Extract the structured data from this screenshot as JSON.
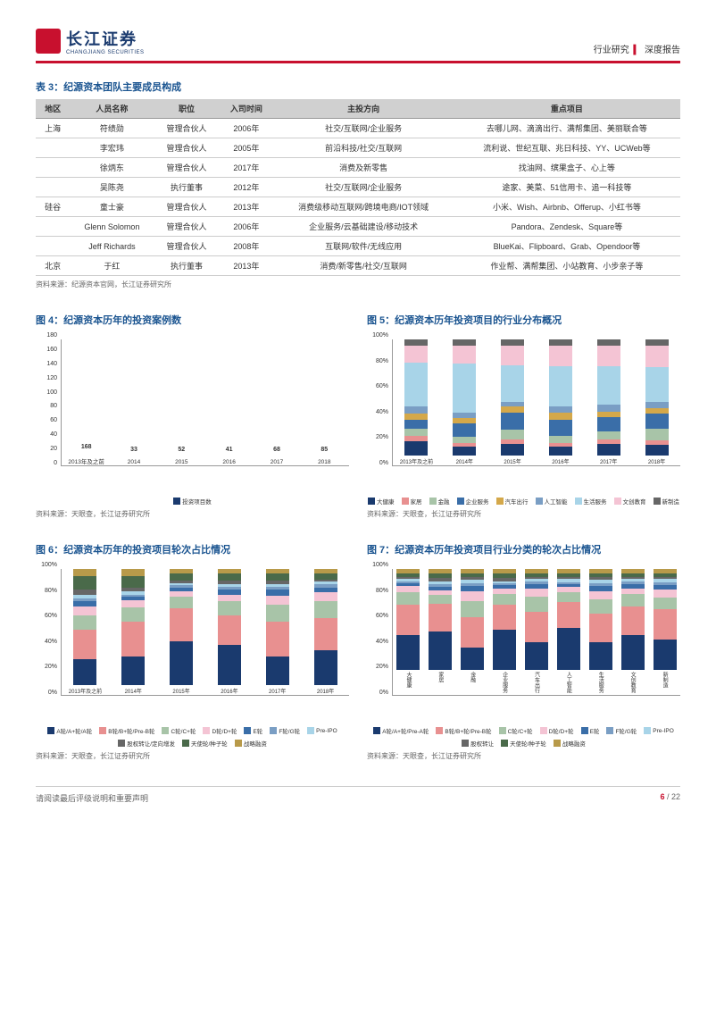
{
  "header": {
    "logo_cn": "长江证券",
    "logo_en": "CHANGJIANG SECURITIES",
    "cat1": "行业研究",
    "cat2": "深度报告"
  },
  "table3": {
    "title": "表 3：纪源资本团队主要成员构成",
    "headers": [
      "地区",
      "人员名称",
      "职位",
      "入司时间",
      "主投方向",
      "重点项目"
    ],
    "rows": [
      [
        "上海",
        "符绩勋",
        "管理合伙人",
        "2006年",
        "社交/互联网/企业服务",
        "去哪儿网、滴滴出行、满帮集团、美丽联合等"
      ],
      [
        "",
        "李宏玮",
        "管理合伙人",
        "2005年",
        "前沿科技/社交/互联网",
        "流利说、世纪互联、兆日科技、YY、UCWeb等"
      ],
      [
        "",
        "徐炳东",
        "管理合伙人",
        "2017年",
        "消费及新零售",
        "找油网、缤果盒子、心上等"
      ],
      [
        "",
        "吴陈尧",
        "执行董事",
        "2012年",
        "社交/互联网/企业服务",
        "途家、美菜、51信用卡、追一科技等"
      ],
      [
        "硅谷",
        "童士豪",
        "管理合伙人",
        "2013年",
        "消费级移动互联网/跨境电商/IOT领域",
        "小米、Wish、Airbnb、Offerup、小红书等"
      ],
      [
        "",
        "Glenn Solomon",
        "管理合伙人",
        "2006年",
        "企业服务/云基础建设/移动技术",
        "Pandora、Zendesk、Square等"
      ],
      [
        "",
        "Jeff Richards",
        "管理合伙人",
        "2008年",
        "互联网/软件/无线应用",
        "BlueKai、Flipboard、Grab、Opendoor等"
      ],
      [
        "北京",
        "于红",
        "执行董事",
        "2013年",
        "消费/新零售/社交/互联网",
        "作业帮、满帮集团、小站教育、小步亲子等"
      ]
    ],
    "source": "资料来源：纪源资本官网，长江证券研究所"
  },
  "chart4": {
    "title": "图 4：纪源资本历年的投资案例数",
    "y_ticks": [
      "180",
      "160",
      "140",
      "120",
      "100",
      "80",
      "60",
      "40",
      "20",
      "0"
    ],
    "x_labels": [
      "2013年及之前",
      "2014",
      "2015",
      "2016",
      "2017",
      "2018"
    ],
    "values": [
      168,
      33,
      52,
      41,
      68,
      85
    ],
    "max": 180,
    "bar_color": "#1a3a6e",
    "legend": "投资项目数",
    "source": "资料来源：天眼查，长江证券研究所"
  },
  "chart5": {
    "title": "图 5：纪源资本历年投资项目的行业分布概况",
    "y_ticks": [
      "100%",
      "80%",
      "60%",
      "40%",
      "20%",
      "0%"
    ],
    "x_labels": [
      "2013年及之前",
      "2014年",
      "2015年",
      "2016年",
      "2017年",
      "2018年"
    ],
    "series": [
      {
        "name": "大健康",
        "color": "#1a3a6e"
      },
      {
        "name": "家居",
        "color": "#e89090"
      },
      {
        "name": "金融",
        "color": "#a8c4a8"
      },
      {
        "name": "企业服务",
        "color": "#3a6ea8"
      },
      {
        "name": "汽车出行",
        "color": "#d4a84a"
      },
      {
        "name": "人工智能",
        "color": "#7a9ec4"
      },
      {
        "name": "生活服务",
        "color": "#a8d4e8"
      },
      {
        "name": "文创教育",
        "color": "#f4c4d4"
      },
      {
        "name": "新制造",
        "color": "#666666"
      }
    ],
    "data": [
      [
        12,
        5,
        6,
        8,
        5,
        6,
        38,
        15,
        5
      ],
      [
        8,
        3,
        5,
        12,
        4,
        5,
        42,
        16,
        5
      ],
      [
        10,
        4,
        8,
        15,
        5,
        4,
        32,
        17,
        5
      ],
      [
        8,
        3,
        6,
        14,
        6,
        5,
        35,
        18,
        5
      ],
      [
        10,
        4,
        7,
        12,
        5,
        6,
        33,
        18,
        5
      ],
      [
        9,
        4,
        10,
        13,
        5,
        5,
        30,
        19,
        5
      ]
    ],
    "source": "资料来源：天眼查，长江证券研究所"
  },
  "chart6": {
    "title": "图 6：纪源资本历年的投资项目轮次占比情况",
    "y_ticks": [
      "100%",
      "80%",
      "60%",
      "40%",
      "20%",
      "0%"
    ],
    "x_labels": [
      "2013年及之前",
      "2014年",
      "2015年",
      "2016年",
      "2017年",
      "2018年"
    ],
    "series": [
      {
        "name": "A轮/A+轮/A轮",
        "color": "#1a3a6e"
      },
      {
        "name": "B轮/B+轮/Pre-B轮",
        "color": "#e89090"
      },
      {
        "name": "C轮/C+轮",
        "color": "#a8c4a8"
      },
      {
        "name": "D轮/D+轮",
        "color": "#f4c4d4"
      },
      {
        "name": "E轮",
        "color": "#3a6ea8"
      },
      {
        "name": "F轮/G轮",
        "color": "#7a9ec4"
      },
      {
        "name": "Pre-IPO",
        "color": "#a8d4e8"
      },
      {
        "name": "股权转让/定向增发",
        "color": "#666666"
      },
      {
        "name": "天使轮/种子轮",
        "color": "#4a6a4a"
      },
      {
        "name": "战略融资",
        "color": "#b89a4a"
      }
    ],
    "data": [
      [
        22,
        26,
        12,
        8,
        4,
        3,
        3,
        4,
        12,
        6
      ],
      [
        25,
        30,
        12,
        6,
        3,
        2,
        3,
        3,
        10,
        6
      ],
      [
        38,
        28,
        10,
        5,
        3,
        2,
        2,
        2,
        6,
        4
      ],
      [
        35,
        25,
        12,
        6,
        4,
        3,
        2,
        3,
        6,
        4
      ],
      [
        25,
        30,
        14,
        8,
        5,
        3,
        2,
        3,
        6,
        4
      ],
      [
        30,
        28,
        14,
        8,
        4,
        3,
        2,
        2,
        5,
        4
      ]
    ],
    "source": "资料来源：天眼查，长江证券研究所"
  },
  "chart7": {
    "title": "图 7：纪源资本历年投资项目行业分类的轮次占比情况",
    "y_ticks": [
      "100%",
      "80%",
      "60%",
      "40%",
      "20%",
      "0%"
    ],
    "x_labels": [
      "大健康",
      "家居",
      "金融",
      "企业服务",
      "汽车出行",
      "人工智能",
      "生活服务",
      "文创教育",
      "新制造"
    ],
    "series": [
      {
        "name": "A轮/A+轮/Pre-A轮",
        "color": "#1a3a6e"
      },
      {
        "name": "B轮/B+轮/Pre-B轮",
        "color": "#e89090"
      },
      {
        "name": "C轮/C+轮",
        "color": "#a8c4a8"
      },
      {
        "name": "D轮/D+轮",
        "color": "#f4c4d4"
      },
      {
        "name": "E轮",
        "color": "#3a6ea8"
      },
      {
        "name": "F轮/G轮",
        "color": "#7a9ec4"
      },
      {
        "name": "Pre-IPO",
        "color": "#a8d4e8"
      },
      {
        "name": "股权转让",
        "color": "#666666"
      },
      {
        "name": "天使轮/种子轮",
        "color": "#4a6a4a"
      },
      {
        "name": "战略融资",
        "color": "#b89a4a"
      }
    ],
    "data": [
      [
        35,
        30,
        12,
        6,
        3,
        2,
        2,
        2,
        4,
        4
      ],
      [
        38,
        28,
        8,
        5,
        3,
        3,
        3,
        3,
        5,
        4
      ],
      [
        22,
        30,
        16,
        10,
        5,
        3,
        3,
        3,
        4,
        4
      ],
      [
        40,
        25,
        10,
        6,
        3,
        2,
        2,
        3,
        5,
        4
      ],
      [
        28,
        30,
        15,
        8,
        4,
        3,
        2,
        2,
        4,
        4
      ],
      [
        42,
        25,
        10,
        5,
        3,
        2,
        3,
        2,
        4,
        4
      ],
      [
        28,
        28,
        14,
        8,
        5,
        3,
        3,
        3,
        4,
        4
      ],
      [
        35,
        28,
        12,
        6,
        4,
        3,
        2,
        2,
        4,
        4
      ],
      [
        30,
        30,
        12,
        8,
        4,
        3,
        3,
        2,
        4,
        4
      ]
    ],
    "source": "资料来源：天眼查，长江证券研究所"
  },
  "footer": {
    "disclaimer": "请阅读最后评级说明和重要声明",
    "page_current": "6",
    "page_sep": " / ",
    "page_total": "22"
  }
}
